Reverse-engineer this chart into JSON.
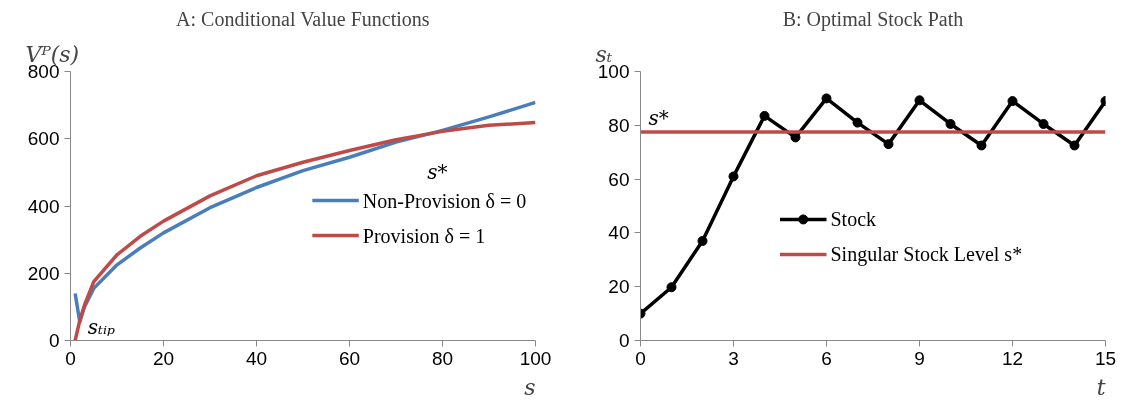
{
  "chart_data": [
    {
      "type": "line",
      "title": "A: Conditional Value Functions",
      "xlabel": "s",
      "ylabel": "Vᴾ(s)",
      "xlim": [
        0,
        100
      ],
      "ylim": [
        0,
        800
      ],
      "xticks": [
        0,
        20,
        40,
        60,
        80,
        100
      ],
      "yticks": [
        0,
        200,
        400,
        600,
        800
      ],
      "grid": false,
      "legend": "right",
      "marker": "none",
      "line_style": "solid",
      "series": [
        {
          "name": "Non-Provision   δ = 0",
          "color": "#4a7ebb",
          "x": [
            1,
            2,
            3,
            5,
            10,
            15,
            20,
            30,
            40,
            50,
            60,
            70,
            80,
            85,
            90,
            100
          ],
          "values": [
            140,
            55,
            100,
            155,
            225,
            275,
            320,
            395,
            455,
            505,
            545,
            590,
            625,
            645,
            665,
            708
          ]
        },
        {
          "name": "Provision   δ = 1",
          "color": "#be4b48",
          "x": [
            1,
            2,
            3,
            5,
            10,
            15,
            20,
            30,
            40,
            50,
            60,
            70,
            80,
            90,
            100
          ],
          "values": [
            0,
            60,
            105,
            175,
            255,
            310,
            355,
            430,
            490,
            530,
            565,
            597,
            622,
            640,
            648
          ]
        }
      ],
      "annotations": [
        {
          "text": "sₜᵢₚ",
          "x": 2,
          "y": 40
        },
        {
          "text": "s*",
          "x": 78,
          "y": 620
        }
      ]
    },
    {
      "type": "line",
      "title": "B: Optimal Stock Path",
      "xlabel": "t",
      "ylabel": "sₜ",
      "xlim": [
        0,
        15
      ],
      "ylim": [
        0,
        100
      ],
      "xticks": [
        0,
        3,
        6,
        9,
        12,
        15
      ],
      "yticks": [
        0,
        20,
        40,
        60,
        80,
        100
      ],
      "grid": false,
      "legend": "center",
      "marker": "circle",
      "line_style": "solid",
      "series": [
        {
          "name": "Stock",
          "color": "#000000",
          "x": [
            0,
            1,
            2,
            3,
            4,
            5,
            6,
            7,
            8,
            9,
            10,
            11,
            12,
            13,
            14,
            15
          ],
          "values": [
            10,
            19.8,
            37,
            61,
            83.5,
            75.5,
            90,
            81,
            73,
            89.3,
            80.5,
            72.5,
            89,
            80.5,
            72.5,
            89
          ]
        }
      ],
      "ref_lines": [
        {
          "axis": "y",
          "value": 77.5,
          "label": "Singular Stock Level   s*",
          "color": "#be4b48"
        }
      ],
      "annotations": [
        {
          "text": "s*",
          "x": 0,
          "y": 77.5
        }
      ]
    }
  ]
}
